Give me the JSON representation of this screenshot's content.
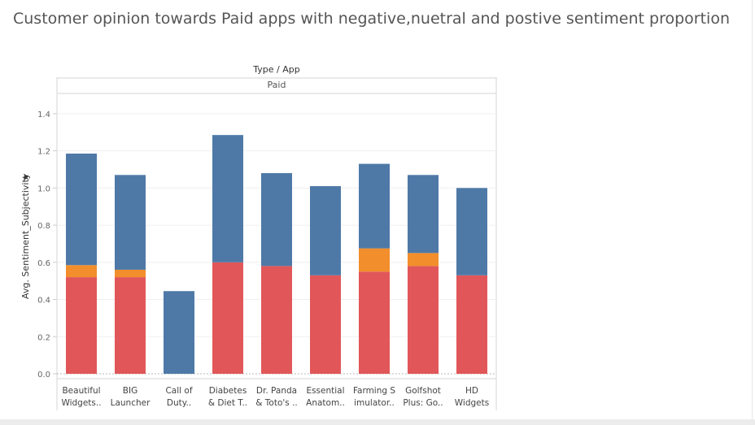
{
  "title": "Customer  opinion towards Paid apps with negative,nuetral and postive sentiment proportion",
  "chart_data": {
    "type": "bar",
    "stacked": true,
    "header": "Type / App",
    "panel": "Paid",
    "ylabel": "Avg. Sentiment_Subjectivity",
    "ylim": [
      0,
      1.5
    ],
    "yticks": [
      "0.0",
      "0.2",
      "0.4",
      "0.6",
      "0.8",
      "1.0",
      "1.2",
      "1.4"
    ],
    "categories": [
      [
        "Beautiful",
        "Widgets.."
      ],
      [
        "BIG",
        "Launcher"
      ],
      [
        "Call of",
        "Duty.."
      ],
      [
        "Diabetes",
        "& Diet T.."
      ],
      [
        "Dr. Panda",
        "& Toto's .."
      ],
      [
        "Essential",
        "Anatom.."
      ],
      [
        "Farming S",
        "imulator.."
      ],
      [
        "Golfshot",
        "Plus: Go.."
      ],
      [
        "HD",
        "Widgets"
      ]
    ],
    "series": [
      {
        "color": "#e15759",
        "values": [
          0.52,
          0.52,
          0.0,
          0.6,
          0.58,
          0.53,
          0.55,
          0.58,
          0.53
        ]
      },
      {
        "color": "#f28e2b",
        "values": [
          0.065,
          0.04,
          0.0,
          0.0,
          0.0,
          0.0,
          0.125,
          0.07,
          0.0
        ]
      },
      {
        "color": "#4e79a7",
        "values": [
          0.6,
          0.51,
          0.445,
          0.685,
          0.5,
          0.48,
          0.455,
          0.42,
          0.47
        ]
      }
    ],
    "grid": true
  }
}
